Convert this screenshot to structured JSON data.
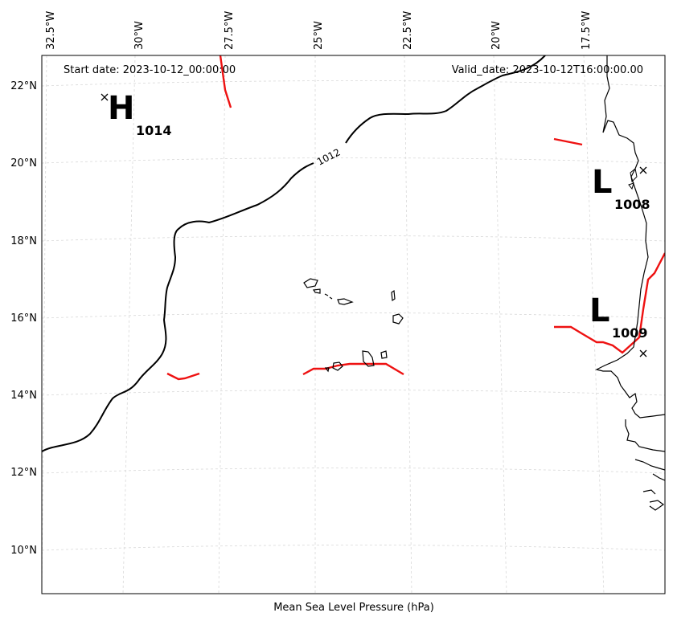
{
  "map": {
    "start_date": "Start date: 2023-10-12_00:00:00",
    "valid_date": "Valid_date: 2023-10-12T16:00:00.00",
    "caption": "Mean Sea Level Pressure (hPa)",
    "lon_labels": [
      "32.5°W",
      "30°W",
      "27.5°W",
      "25°W",
      "22.5°W",
      "20°W",
      "17.5°W"
    ],
    "lat_labels": [
      "22°N",
      "20°N",
      "18°N",
      "16°N",
      "14°N",
      "12°N",
      "10°N"
    ],
    "contour_label": "1012",
    "centers": [
      {
        "type": "H",
        "value": "1014"
      },
      {
        "type": "L",
        "value": "1008"
      },
      {
        "type": "L",
        "value": "1009"
      }
    ],
    "colors": {
      "contour_black": "#000000",
      "contour_red": "#ee1111",
      "grid": "#d8d8d8",
      "coastline": "#000000"
    }
  }
}
